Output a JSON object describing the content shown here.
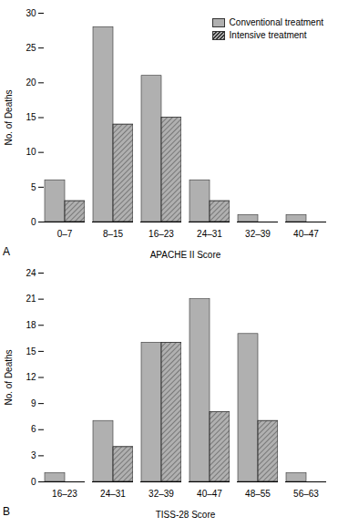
{
  "chart_data": [
    {
      "type": "bar",
      "categories": [
        "0–7",
        "8–15",
        "16–23",
        "24–31",
        "32–39",
        "40–47"
      ],
      "series": [
        {
          "name": "Conventional treatment",
          "color": "#b0b0b0",
          "values": [
            6,
            28,
            21,
            6,
            1,
            1
          ]
        },
        {
          "name": "Intensive treatment",
          "color": "#b0b0b0",
          "values": [
            3,
            14,
            15,
            3,
            0,
            0
          ]
        }
      ],
      "xlabel": "APACHE II Score",
      "ylabel": "No. of Deaths",
      "ylim": [
        0,
        30
      ],
      "yticks": [
        0,
        5,
        10,
        15,
        20,
        25,
        30
      ],
      "grid": false,
      "legend": "upper right",
      "annotations": [
        "A"
      ]
    },
    {
      "type": "bar",
      "categories": [
        "16–23",
        "24–31",
        "32–39",
        "40–47",
        "48–55",
        "56–63"
      ],
      "series": [
        {
          "name": "Conventional treatment",
          "color": "#b0b0b0",
          "values": [
            1,
            7,
            16,
            21,
            17,
            1
          ]
        },
        {
          "name": "Intensive treatment",
          "color": "#b0b0b0",
          "values": [
            0,
            4,
            16,
            8,
            7,
            0
          ]
        }
      ],
      "xlabel": "TISS-28 Score",
      "ylabel": "No. of Deaths",
      "ylim": [
        0,
        24
      ],
      "yticks": [
        0,
        3,
        6,
        9,
        12,
        15,
        18,
        21,
        24
      ],
      "grid": false,
      "annotations": [
        "B"
      ]
    }
  ]
}
